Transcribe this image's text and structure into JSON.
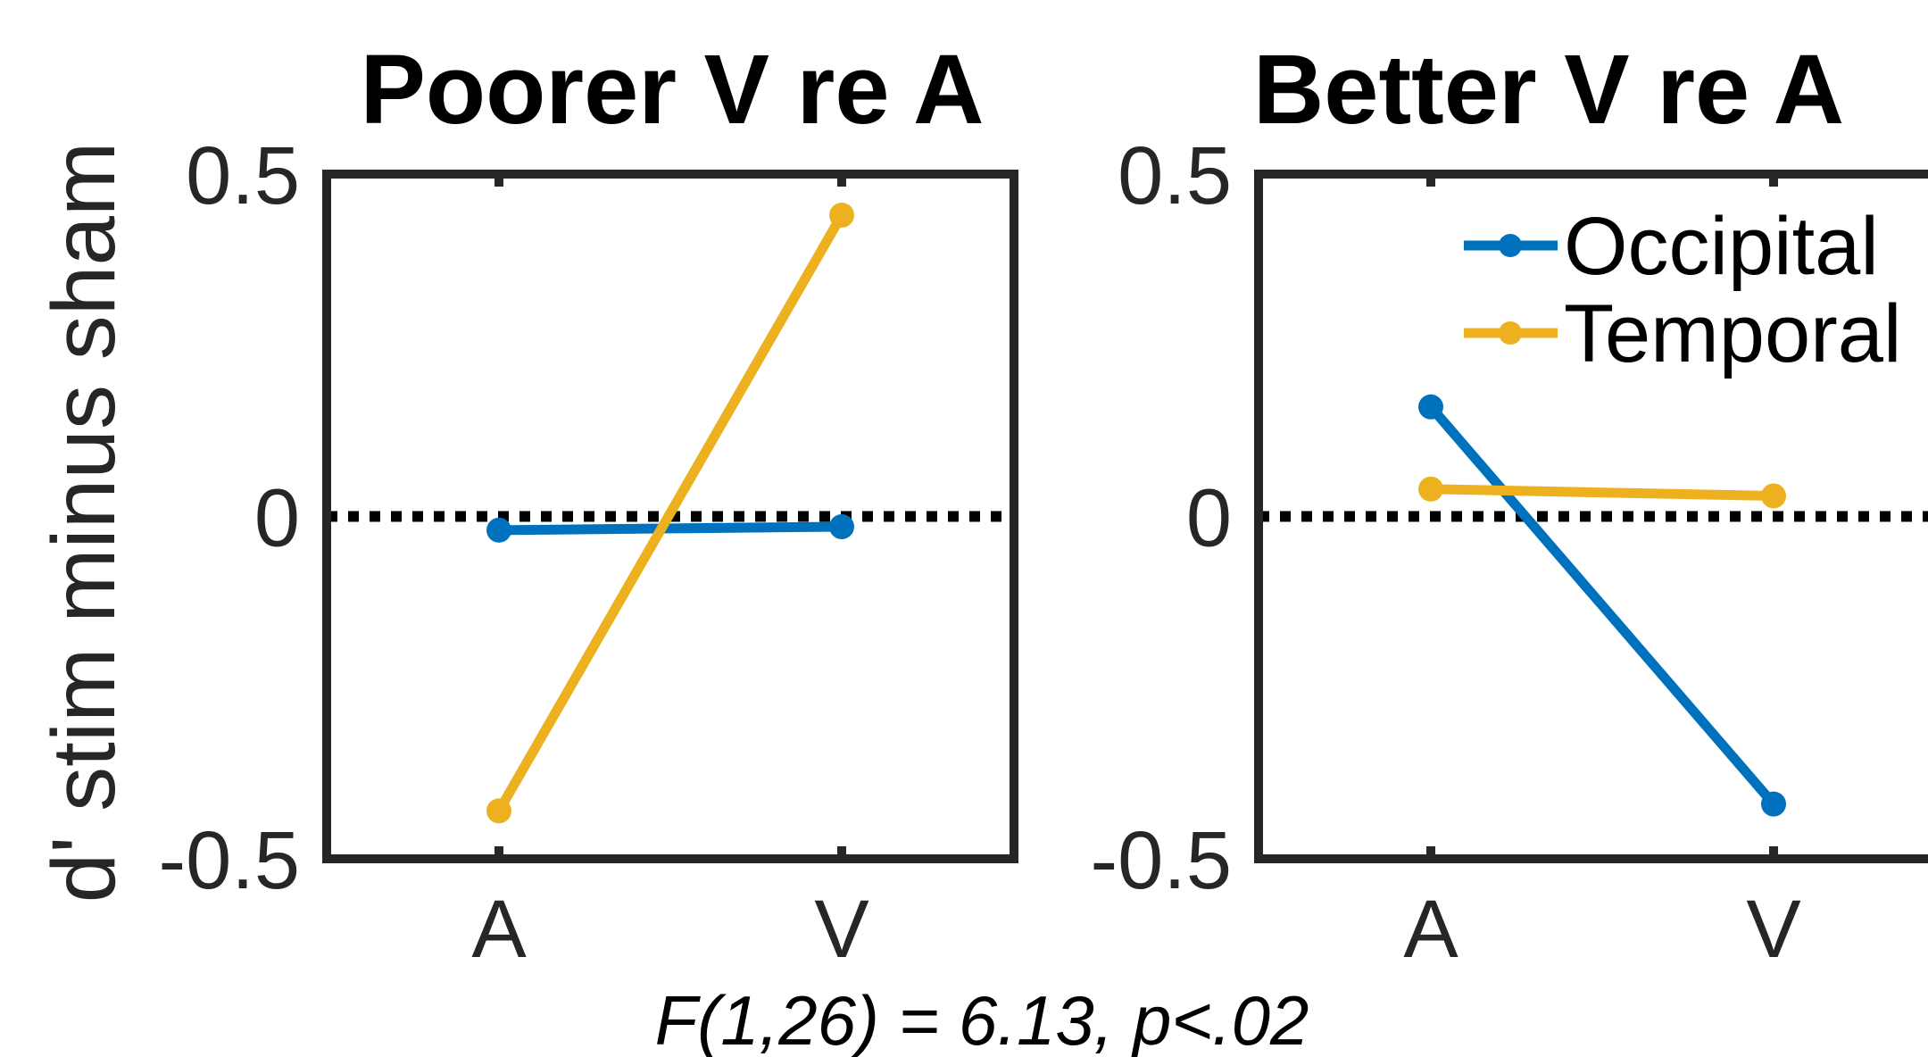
{
  "figure": {
    "ylabel": "d' stim minus sham",
    "stats_note": "F(1,26) = 6.13, p<.02"
  },
  "colors": {
    "occipital": "#0072BD",
    "temporal": "#EDB120",
    "axes": "#262626",
    "zero_line": "#000000"
  },
  "legend": [
    {
      "label": "Occipital",
      "color": "#0072BD"
    },
    {
      "label": "Temporal",
      "color": "#EDB120"
    }
  ],
  "chart_data": [
    {
      "type": "line",
      "title": "Poorer V re A",
      "categories": [
        "A",
        "V"
      ],
      "ylim": [
        -0.5,
        0.5
      ],
      "yticks": [
        "-0.5",
        "0",
        "0.5"
      ],
      "zero_line": "dotted",
      "series": [
        {
          "name": "Occipital",
          "values": [
            -0.02,
            -0.015
          ]
        },
        {
          "name": "Temporal",
          "values": [
            -0.43,
            0.44
          ]
        }
      ]
    },
    {
      "type": "line",
      "title": "Better V re A",
      "categories": [
        "A",
        "V"
      ],
      "ylim": [
        -0.5,
        0.5
      ],
      "yticks": [
        "-0.5",
        "0",
        "0.5"
      ],
      "zero_line": "dotted",
      "legend_position": "top-right",
      "series": [
        {
          "name": "Occipital",
          "values": [
            0.16,
            -0.42
          ]
        },
        {
          "name": "Temporal",
          "values": [
            0.04,
            0.03
          ]
        }
      ]
    }
  ]
}
